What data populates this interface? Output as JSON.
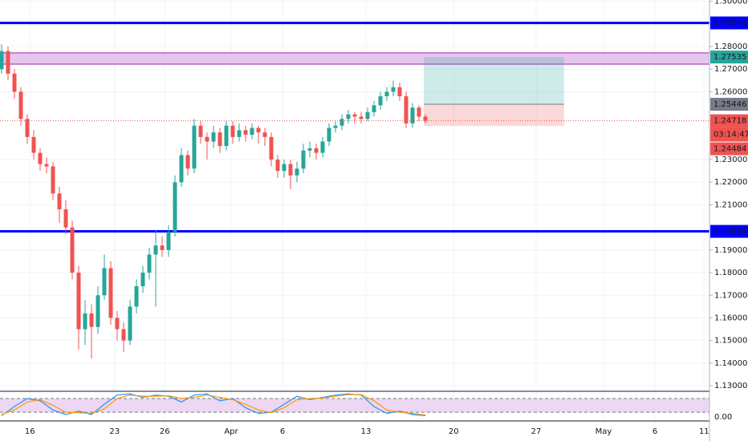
{
  "chart_data": [
    {
      "type": "candlestick",
      "x": [
        0,
        1,
        2,
        3,
        4,
        5,
        6,
        7,
        8,
        9,
        10,
        11,
        12,
        13,
        14,
        15,
        16,
        17,
        18,
        19,
        20,
        21,
        22,
        23,
        24,
        25,
        26,
        27,
        28,
        29,
        30,
        31,
        32,
        33,
        34,
        35,
        36,
        37,
        38,
        39,
        40,
        41,
        42,
        43,
        44,
        45,
        46,
        47,
        48,
        49,
        50,
        51,
        52,
        53,
        54,
        55,
        56,
        57,
        58,
        59,
        60,
        61,
        62,
        63,
        64,
        65,
        66
      ],
      "open": [
        1.27,
        1.278,
        1.268,
        1.26,
        1.248,
        1.24,
        1.233,
        1.228,
        1.227,
        1.215,
        1.208,
        1.2,
        1.18,
        1.155,
        1.162,
        1.156,
        1.17,
        1.182,
        1.16,
        1.155,
        1.15,
        1.165,
        1.174,
        1.18,
        1.188,
        1.192,
        1.19,
        1.198,
        1.22,
        1.232,
        1.226,
        1.245,
        1.24,
        1.238,
        1.242,
        1.236,
        1.245,
        1.24,
        1.243,
        1.241,
        1.244,
        1.242,
        1.24,
        1.23,
        1.225,
        1.228,
        1.223,
        1.226,
        1.234,
        1.235,
        1.233,
        1.238,
        1.244,
        1.245,
        1.248,
        1.25,
        1.249,
        1.248,
        1.251,
        1.254,
        1.258,
        1.26,
        1.262,
        1.258,
        1.246,
        1.253,
        1.249
      ],
      "high": [
        1.281,
        1.28,
        1.27,
        1.262,
        1.25,
        1.243,
        1.235,
        1.231,
        1.229,
        1.218,
        1.212,
        1.203,
        1.183,
        1.168,
        1.166,
        1.174,
        1.188,
        1.185,
        1.163,
        1.158,
        1.168,
        1.177,
        1.183,
        1.191,
        1.199,
        1.196,
        1.201,
        1.223,
        1.235,
        1.234,
        1.248,
        1.247,
        1.242,
        1.245,
        1.244,
        1.247,
        1.247,
        1.246,
        1.245,
        1.246,
        1.245,
        1.244,
        1.242,
        1.232,
        1.23,
        1.23,
        1.229,
        1.237,
        1.238,
        1.237,
        1.24,
        1.246,
        1.247,
        1.25,
        1.252,
        1.251,
        1.251,
        1.253,
        1.256,
        1.26,
        1.262,
        1.265,
        1.264,
        1.26,
        1.255,
        1.254,
        1.25
      ],
      "low": [
        1.268,
        1.265,
        1.257,
        1.245,
        1.237,
        1.23,
        1.225,
        1.224,
        1.212,
        1.202,
        1.197,
        1.177,
        1.146,
        1.148,
        1.142,
        1.153,
        1.168,
        1.157,
        1.15,
        1.145,
        1.148,
        1.162,
        1.171,
        1.177,
        1.165,
        1.187,
        1.187,
        1.196,
        1.218,
        1.223,
        1.224,
        1.237,
        1.23,
        1.235,
        1.233,
        1.234,
        1.237,
        1.238,
        1.238,
        1.239,
        1.237,
        1.236,
        1.227,
        1.222,
        1.222,
        1.217,
        1.22,
        1.224,
        1.231,
        1.23,
        1.231,
        1.236,
        1.242,
        1.243,
        1.246,
        1.246,
        1.246,
        1.247,
        1.249,
        1.252,
        1.256,
        1.258,
        1.256,
        1.244,
        1.244,
        1.247,
        1.246
      ],
      "close": [
        1.278,
        1.268,
        1.26,
        1.248,
        1.24,
        1.233,
        1.228,
        1.227,
        1.215,
        1.208,
        1.2,
        1.18,
        1.155,
        1.162,
        1.156,
        1.17,
        1.182,
        1.16,
        1.155,
        1.15,
        1.165,
        1.174,
        1.18,
        1.188,
        1.192,
        1.19,
        1.198,
        1.22,
        1.232,
        1.226,
        1.245,
        1.24,
        1.238,
        1.242,
        1.236,
        1.245,
        1.24,
        1.243,
        1.241,
        1.244,
        1.242,
        1.24,
        1.23,
        1.225,
        1.228,
        1.223,
        1.226,
        1.234,
        1.235,
        1.233,
        1.238,
        1.244,
        1.245,
        1.248,
        1.25,
        1.249,
        1.248,
        1.251,
        1.254,
        1.258,
        1.26,
        1.262,
        1.258,
        1.246,
        1.253,
        1.249,
        1.2472
      ],
      "up_color": "#26a69a",
      "down_color": "#ef5350",
      "xlim": [
        -0.25,
        110.25
      ],
      "ylim": [
        1.1279,
        1.30057
      ],
      "xticks": [
        {
          "value": 4.4,
          "label": "16"
        },
        {
          "value": 17.6,
          "label": "23"
        },
        {
          "value": 25.4,
          "label": "26"
        },
        {
          "value": 35.75,
          "label": "Apr"
        },
        {
          "value": 43.75,
          "label": "6"
        },
        {
          "value": 56.75,
          "label": "13"
        },
        {
          "value": 70.4,
          "label": "20"
        },
        {
          "value": 83.25,
          "label": "27"
        },
        {
          "value": 93.75,
          "label": "May"
        },
        {
          "value": 101.75,
          "label": "6"
        },
        {
          "value": 109.4,
          "label": "11"
        }
      ],
      "yticks": [
        {
          "value": 1.3,
          "label": "1.30000"
        },
        {
          "value": 1.28,
          "label": "1.28000"
        },
        {
          "value": 1.27,
          "label": "1.27000"
        },
        {
          "value": 1.26,
          "label": "1.26000"
        },
        {
          "value": 1.23,
          "label": "1.23000"
        },
        {
          "value": 1.22,
          "label": "1.22000"
        },
        {
          "value": 1.21,
          "label": "1.21000"
        },
        {
          "value": 1.19,
          "label": "1.19000"
        },
        {
          "value": 1.18,
          "label": "1.18000"
        },
        {
          "value": 1.17,
          "label": "1.17000"
        },
        {
          "value": 1.16,
          "label": "1.16000"
        },
        {
          "value": 1.15,
          "label": "1.15000"
        },
        {
          "value": 1.14,
          "label": "1.14000"
        },
        {
          "value": 1.13,
          "label": "1.13000"
        }
      ],
      "grid": true,
      "levels": [
        {
          "value": 1.29044,
          "color": "#0000ff"
        },
        {
          "value": 1.19826,
          "color": "#0000ff"
        }
      ],
      "zone": {
        "low": 1.2722,
        "high": 1.2772,
        "color": "#e6c6ee"
      },
      "position": {
        "x_start": 65.75,
        "x_end": 87.6,
        "target": 1.27535,
        "entry": 1.25446,
        "stop": 1.24484,
        "target_color": "#26a69a",
        "entry_color": "#787b86",
        "stop_color": "#ef5350"
      },
      "last_price": {
        "value": 1.24718,
        "countdown": "03:14:47",
        "color": "#ef5350"
      }
    },
    {
      "type": "stoch_rsi",
      "x": [
        0,
        2,
        4,
        6,
        8,
        10,
        12,
        14,
        16,
        18,
        20,
        22,
        24,
        26,
        28,
        30,
        32,
        34,
        36,
        38,
        40,
        42,
        44,
        46,
        48,
        50,
        52,
        54,
        56,
        58,
        60,
        62,
        64,
        66
      ],
      "series": [
        {
          "color": "#2196f3",
          "values": [
            5,
            45,
            80,
            70,
            30,
            10,
            25,
            10,
            55,
            95,
            100,
            85,
            95,
            90,
            65,
            95,
            100,
            70,
            80,
            40,
            15,
            20,
            55,
            90,
            75,
            85,
            95,
            100,
            95,
            45,
            15,
            25,
            10,
            5
          ]
        },
        {
          "color": "#ff9800",
          "values": [
            10,
            30,
            65,
            75,
            50,
            20,
            18,
            15,
            35,
            80,
            95,
            90,
            90,
            92,
            80,
            85,
            95,
            85,
            75,
            55,
            30,
            18,
            40,
            75,
            80,
            82,
            90,
            97,
            97,
            70,
            30,
            20,
            15,
            8
          ]
        }
      ],
      "ylim": [
        -18,
        108
      ],
      "yticks": [
        {
          "value": 0,
          "label": "0.00"
        }
      ],
      "bands": [
        20,
        80
      ],
      "band_color": "#e6c6ee"
    }
  ]
}
